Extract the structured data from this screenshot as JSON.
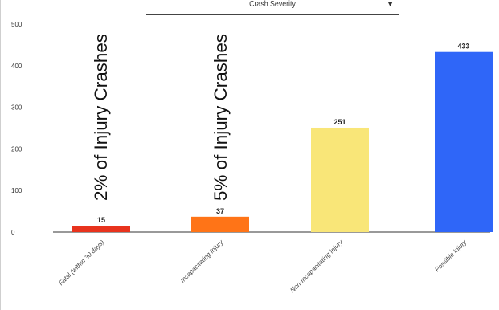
{
  "filter": {
    "label": "Crash Severity",
    "arrow_icon": "caret-down-icon"
  },
  "chart_data": {
    "type": "bar",
    "title": "",
    "xlabel": "",
    "ylabel": "",
    "categories": [
      "Fatal (within 30 days)",
      "Incapacitating Injury",
      "Non-Incapacitating Injury",
      "Possible Injury"
    ],
    "values": [
      15,
      37,
      251,
      433
    ],
    "data_labels": [
      "15",
      "37",
      "251",
      "433"
    ],
    "colors": [
      "#e8331d",
      "#ff7417",
      "#f9e678",
      "#2f66f8"
    ],
    "ylim": [
      0,
      500
    ],
    "yticks": [
      0,
      100,
      200,
      300,
      400,
      500
    ],
    "grid": false,
    "annotations": [
      {
        "category_index": 0,
        "text": "2% of Injury Crashes"
      },
      {
        "category_index": 1,
        "text": "5% of Injury Crashes"
      }
    ]
  }
}
